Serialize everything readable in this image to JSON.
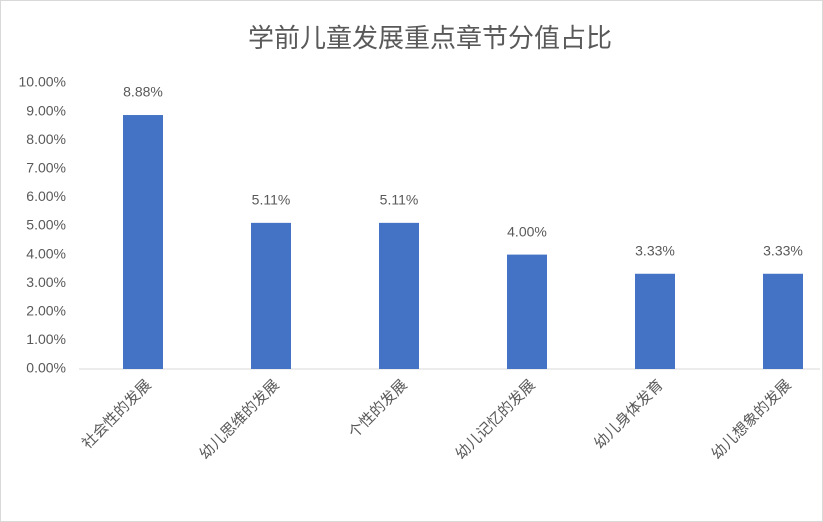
{
  "chart_data": {
    "type": "bar",
    "title": "学前儿童发展重点章节分值占比",
    "categories": [
      "社会性的发展",
      "幼儿思维的发展",
      "个性的发展",
      "幼儿记忆的发展",
      "幼儿身体发育",
      "幼儿想象的发展"
    ],
    "values": [
      8.88,
      5.11,
      5.11,
      4.0,
      3.33,
      3.33
    ],
    "value_labels": [
      "8.88%",
      "5.11%",
      "5.11%",
      "4.00%",
      "3.33%",
      "3.33%"
    ],
    "color": "#4472c4",
    "ylim": [
      0,
      10
    ],
    "yticks": [
      {
        "value": 0,
        "label": "0.00%"
      },
      {
        "value": 1,
        "label": "1.00%"
      },
      {
        "value": 2,
        "label": "2.00%"
      },
      {
        "value": 3,
        "label": "3.00%"
      },
      {
        "value": 4,
        "label": "4.00%"
      },
      {
        "value": 5,
        "label": "5.00%"
      },
      {
        "value": 6,
        "label": "6.00%"
      },
      {
        "value": 7,
        "label": "7.00%"
      },
      {
        "value": 8,
        "label": "8.00%"
      },
      {
        "value": 9,
        "label": "9.00%"
      },
      {
        "value": 10,
        "label": "10.00%"
      }
    ],
    "grid": false
  }
}
